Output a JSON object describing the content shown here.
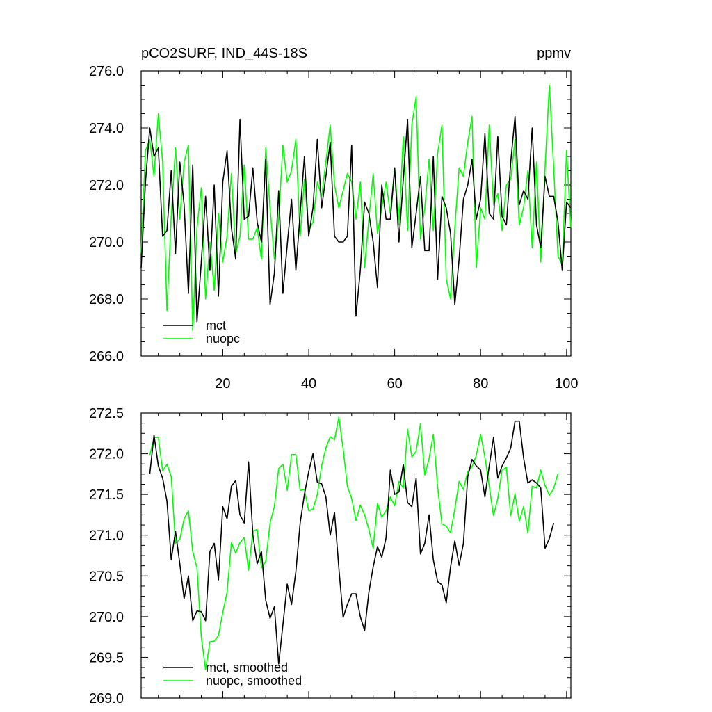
{
  "chart_data": [
    {
      "type": "line",
      "title": "pCO2SURF, IND_44S-18S",
      "units": "ppmv",
      "xlim": [
        1,
        101
      ],
      "ylim": [
        266.0,
        276.0
      ],
      "x_ticks": [
        20,
        40,
        60,
        80,
        100
      ],
      "y_ticks": [
        "266.0",
        "268.0",
        "270.0",
        "272.0",
        "274.0",
        "276.0"
      ],
      "legend_position": "lower-left",
      "series": [
        {
          "name": "mct",
          "color": "#000000",
          "x_start": 1,
          "values": [
            269.1,
            272.1,
            274.0,
            273.0,
            273.3,
            270.2,
            270.4,
            272.5,
            269.6,
            272.8,
            271.3,
            268.2,
            272.7,
            267.2,
            269.3,
            271.6,
            269.0,
            272.0,
            268.1,
            272.1,
            273.2,
            270.5,
            269.4,
            274.3,
            270.8,
            270.9,
            272.6,
            270.7,
            270.0,
            272.9,
            267.8,
            268.9,
            271.8,
            268.2,
            269.9,
            271.5,
            269.0,
            271.0,
            273.0,
            270.2,
            271.2,
            273.6,
            271.2,
            272.3,
            273.5,
            270.2,
            270.0,
            270.0,
            270.2,
            273.4,
            267.4,
            269.0,
            271.4,
            271.0,
            270.0,
            268.4,
            272.0,
            270.8,
            270.8,
            272.6,
            270.0,
            272.2,
            274.3,
            269.8,
            271.0,
            272.3,
            269.7,
            269.7,
            273.0,
            268.7,
            271.6,
            271.2,
            270.3,
            267.8,
            269.4,
            271.5,
            272.0,
            272.9,
            270.8,
            271.5,
            273.8,
            271.0,
            270.8,
            273.7,
            270.9,
            270.6,
            272.8,
            274.4,
            271.3,
            271.8,
            271.5,
            274.0,
            270.6,
            269.8,
            272.3,
            271.6,
            271.6,
            270.7,
            269.0,
            271.4,
            271.2
          ]
        },
        {
          "name": "nuopc",
          "color": "#00ff00",
          "x_start": 1,
          "values": [
            269.6,
            273.2,
            273.6,
            272.3,
            274.5,
            272.8,
            267.6,
            270.9,
            273.3,
            270.8,
            272.8,
            273.4,
            266.9,
            270.5,
            271.9,
            268.0,
            270.0,
            268.3,
            271.0,
            269.3,
            270.2,
            272.4,
            269.6,
            270.2,
            272.7,
            270.1,
            270.1,
            270.5,
            269.4,
            273.3,
            271.2,
            269.4,
            270.8,
            273.4,
            272.1,
            272.5,
            273.6,
            270.2,
            272.2,
            270.4,
            270.7,
            272.1,
            271.6,
            272.8,
            274.1,
            272.0,
            271.2,
            271.8,
            272.4,
            272.1,
            270.8,
            272.1,
            269.1,
            270.8,
            272.4,
            270.3,
            271.2,
            272.1,
            271.0,
            272.6,
            270.6,
            273.7,
            270.4,
            274.1,
            275.1,
            270.1,
            271.2,
            272.9,
            270.4,
            273.1,
            274.1,
            268.7,
            268.0,
            270.5,
            272.6,
            272.3,
            273.5,
            274.4,
            269.1,
            271.2,
            270.8,
            274.1,
            271.3,
            271.7,
            270.4,
            272.0,
            272.2,
            273.6,
            270.6,
            271.2,
            272.5,
            269.8,
            272.8,
            269.3,
            272.6,
            275.5,
            272.6,
            269.5,
            269.2,
            273.2,
            270.5
          ]
        }
      ]
    },
    {
      "type": "line",
      "title": "",
      "xlim": [
        1,
        101
      ],
      "ylim": [
        269.0,
        272.5
      ],
      "y_ticks": [
        "269.0",
        "269.5",
        "270.0",
        "270.5",
        "271.0",
        "271.5",
        "272.0",
        "272.5"
      ],
      "legend_position": "lower-left",
      "series": [
        {
          "name": "mct, smoothed",
          "color": "#000000",
          "x_start": 3,
          "values": [
            271.75,
            272.23,
            271.85,
            271.7,
            271.42,
            270.7,
            271.05,
            270.65,
            270.22,
            270.5,
            269.95,
            270.07,
            270.06,
            269.95,
            270.8,
            270.9,
            270.45,
            271.35,
            271.2,
            271.6,
            271.67,
            271.25,
            271.15,
            271.9,
            271.0,
            270.65,
            270.8,
            270.2,
            269.98,
            270.12,
            269.42,
            269.9,
            270.4,
            270.15,
            270.55,
            271.15,
            271.5,
            271.78,
            272.0,
            271.65,
            271.63,
            271.47,
            271.0,
            271.28,
            270.6,
            269.99,
            270.15,
            270.28,
            270.28,
            270.0,
            269.83,
            270.3,
            270.61,
            270.86,
            270.73,
            270.97,
            271.8,
            271.5,
            271.53,
            271.87,
            271.4,
            271.35,
            271.7,
            270.77,
            270.9,
            271.25,
            270.7,
            270.43,
            270.39,
            270.17,
            270.61,
            270.93,
            270.63,
            270.9,
            271.72,
            271.93,
            271.85,
            271.8,
            271.47,
            271.85,
            272.2,
            271.7,
            271.85,
            271.95,
            272.07,
            272.4,
            272.4,
            271.95,
            271.64,
            271.68,
            271.64,
            271.58,
            270.84,
            270.96,
            271.15
          ]
        },
        {
          "name": "nuopc, smoothed",
          "color": "#00ff00",
          "x_start": 3,
          "values": [
            271.98,
            272.2,
            272.2,
            271.79,
            271.87,
            271.72,
            270.9,
            270.95,
            271.2,
            271.3,
            270.8,
            270.6,
            269.75,
            269.35,
            269.69,
            269.7,
            269.77,
            270.05,
            270.3,
            270.91,
            270.78,
            270.91,
            270.97,
            270.57,
            271.05,
            271.07,
            270.6,
            270.68,
            271.15,
            271.35,
            271.82,
            271.87,
            271.55,
            271.99,
            271.99,
            271.55,
            271.56,
            271.3,
            271.32,
            271.5,
            271.85,
            272.07,
            272.21,
            272.17,
            272.45,
            272.06,
            271.6,
            271.45,
            271.18,
            271.37,
            271.25,
            271.07,
            270.84,
            271.39,
            271.22,
            271.3,
            271.47,
            271.36,
            271.66,
            271.58,
            272.3,
            271.96,
            272.03,
            272.37,
            271.74,
            271.94,
            272.24,
            271.59,
            271.14,
            271.11,
            271.03,
            271.32,
            271.66,
            271.56,
            271.78,
            271.84,
            271.98,
            272.24,
            271.96,
            271.6,
            271.24,
            271.45,
            271.8,
            271.83,
            271.24,
            271.51,
            271.17,
            271.35,
            271.03,
            271.6,
            271.58,
            271.8,
            271.61,
            271.49,
            271.57,
            271.76
          ]
        }
      ]
    }
  ]
}
